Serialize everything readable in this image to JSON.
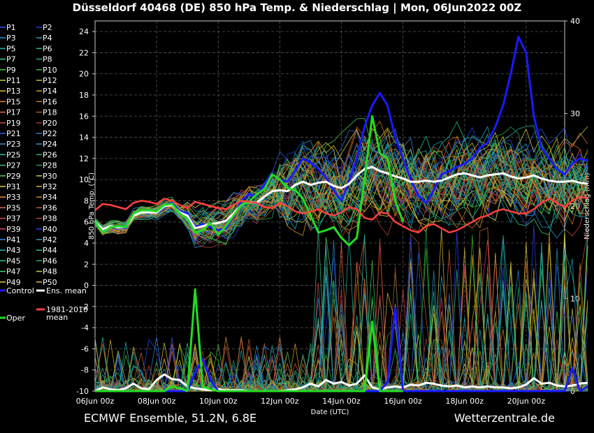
{
  "header": {
    "title": "Düsseldorf 40468 (DE)  850 hPa Temp. & Niederschlag | Mon, 06Jun2022 00Z"
  },
  "footer": {
    "left": "ECMWF Ensemble, 51.2N, 6.8E",
    "right": "Wetterzentrale.de"
  },
  "colors": {
    "background": "#000000",
    "grid": "#555555",
    "control": "#1a1aff",
    "ens_mean": "#ffffff",
    "oper": "#22dd22",
    "climate_mean": "#ff4040"
  },
  "legend": {
    "members": [
      "P1",
      "P2",
      "P3",
      "P4",
      "P5",
      "P6",
      "P7",
      "P8",
      "P9",
      "P10",
      "P11",
      "P12",
      "P13",
      "P14",
      "P15",
      "P16",
      "P17",
      "P18",
      "P19",
      "P20",
      "P21",
      "P22",
      "P23",
      "P24",
      "P25",
      "P26",
      "P27",
      "P28",
      "P29",
      "P30",
      "P31",
      "P32",
      "P33",
      "P34",
      "P35",
      "P36",
      "P37",
      "P38",
      "P39",
      "P40",
      "P41",
      "P42",
      "P43",
      "P44",
      "P45",
      "P46",
      "P47",
      "P48",
      "P49",
      "P50"
    ],
    "member_colors": [
      "#2255ff",
      "#2244ee",
      "#1f9bd8",
      "#3399cc",
      "#22b0b0",
      "#20c0a0",
      "#30d080",
      "#20b060",
      "#40d040",
      "#30c030",
      "#c0d040",
      "#d0c030",
      "#e0c020",
      "#d0a020",
      "#e08a30",
      "#d07a20",
      "#e06a30",
      "#c05a20",
      "#d04a40",
      "#b03030",
      "#3060e0",
      "#2a7ad0",
      "#2a90d0",
      "#20a0c0",
      "#20c0b0",
      "#20b090",
      "#30c070",
      "#20a050",
      "#50d050",
      "#d0d040",
      "#e0d030",
      "#e0b020",
      "#e09a30",
      "#d08020",
      "#e07040",
      "#c06030",
      "#e05050",
      "#c04040",
      "#e04060",
      "#3040ff",
      "#2a8ce0",
      "#2aa0d0",
      "#20b8c0",
      "#20c8a0",
      "#30d090",
      "#20b070",
      "#40d060",
      "#c8d040",
      "#e0c840",
      "#e0c040"
    ],
    "control_label": "Control",
    "ens_mean_label": "Ens. mean",
    "climate_label_1": "1981-2010",
    "climate_label_2": "mean",
    "oper_label": "Oper"
  },
  "chart_data": {
    "type": "line",
    "ylabel": "850 hPa Temp. (°C)",
    "y2label": "Niederschlag (mm)",
    "xlabel": "Date (UTC)",
    "ylim": [
      -10,
      25
    ],
    "y2lim": [
      0,
      40
    ],
    "xlim": [
      "2022-06-06 00:00",
      "2022-06-21 06:00"
    ],
    "yticks": [
      "24",
      "22",
      "20",
      "18",
      "16",
      "14",
      "12",
      "10",
      "8",
      "6",
      "4",
      "2",
      "0",
      "-2",
      "-4",
      "-6",
      "-8",
      "-10"
    ],
    "y2ticks": [
      "40",
      "30",
      "20",
      "10",
      "0"
    ],
    "xticks": [
      "06Jun 00z",
      "08Jun 00z",
      "10Jun 00z",
      "12Jun 00z",
      "14Jun 00z",
      "16Jun 00z",
      "18Jun 00z",
      "20Jun 00z"
    ],
    "grid": true,
    "legend_position": "left outside",
    "time_step_hours": 6,
    "series": [
      {
        "name": "Control",
        "kind": "temperature",
        "values": [
          6,
          5,
          5.6,
          5.5,
          5.4,
          6.8,
          7,
          7,
          7,
          7.6,
          7.8,
          7,
          6.8,
          5.5,
          5.8,
          5.5,
          5.2,
          5.4,
          6.5,
          8,
          8.6,
          8.5,
          9.5,
          10.5,
          10,
          9.8,
          10.8,
          12,
          11.6,
          11,
          10.2,
          9,
          8,
          9.8,
          12,
          15,
          17,
          18.2,
          17,
          14,
          12,
          10,
          8.5,
          7.8,
          9,
          10.5,
          10.8,
          11.2,
          11.5,
          12,
          13,
          13.5,
          15,
          17,
          20,
          23.5,
          22,
          16,
          13,
          12,
          11,
          10.5,
          11.5,
          12,
          11.8
        ]
      },
      {
        "name": "Ens. mean",
        "kind": "temperature",
        "values": [
          6,
          5.3,
          5.6,
          5.5,
          5.5,
          6.6,
          6.9,
          6.9,
          6.9,
          7.5,
          7.6,
          6.9,
          6.6,
          5.4,
          5.6,
          5.8,
          5.9,
          6.1,
          6.8,
          7.6,
          7.9,
          7.8,
          8.4,
          8.9,
          9,
          8.9,
          9.5,
          9.8,
          9.5,
          9.7,
          9.8,
          9.4,
          9.2,
          9.6,
          10.4,
          11,
          11.2,
          10.8,
          10.6,
          10.3,
          10.1,
          9.8,
          9.8,
          9.9,
          9.8,
          9.9,
          10.2,
          10.5,
          10.6,
          10.4,
          10.2,
          10.4,
          10.5,
          10.6,
          10.3,
          10.1,
          10.2,
          10.4,
          10.1,
          9.9,
          9.8,
          9.8,
          9.9,
          9.7,
          9.6
        ]
      },
      {
        "name": "Oper",
        "kind": "temperature",
        "values": [
          6,
          5,
          5.5,
          5.6,
          5.5,
          6.8,
          7.1,
          7.1,
          7,
          7.6,
          7.7,
          6.8,
          6.3,
          5,
          5.2,
          5.9,
          4.8,
          5.6,
          6.6,
          7.6,
          7.9,
          8.6,
          9.1,
          10.5,
          10,
          9.2,
          9,
          8.2,
          6.6,
          5,
          5.2,
          5.5,
          4.5,
          3.8,
          4.5,
          10,
          16,
          12.5,
          12,
          8,
          6
        ]
      },
      {
        "name": "1981-2010 mean",
        "kind": "temperature",
        "values": [
          7.1,
          7.7,
          7.6,
          7.4,
          7.2,
          7.8,
          8,
          7.9,
          7.7,
          8.2,
          8,
          7.6,
          7.3,
          7.9,
          7.7,
          7.5,
          7.3,
          7.2,
          7.6,
          8,
          7.9,
          7.8,
          7.4,
          7.3,
          7.8,
          7.5,
          7,
          6.8,
          7,
          7.2,
          6.8,
          6.6,
          6.9,
          7.4,
          7.2,
          6.4,
          6.2,
          6.9,
          6.8,
          6,
          5.6,
          5.2,
          5,
          5.6,
          5.8,
          5.4,
          5,
          5.2,
          5.6,
          6,
          6.4,
          6.6,
          7,
          7.2,
          7,
          6.8,
          6.8,
          7.2,
          7.8,
          8.2,
          7.8,
          7.4,
          8,
          8.4,
          8.2
        ]
      },
      {
        "name": "Ens. mean",
        "kind": "precipitation",
        "values": [
          0,
          0.4,
          0.2,
          0.1,
          0.3,
          0.8,
          0.3,
          0.2,
          1.2,
          1.8,
          1.3,
          1.2,
          0.5,
          0.3,
          0.2,
          0.1,
          0.2,
          0.1,
          0.1,
          0.1,
          0,
          0,
          0,
          0,
          0,
          0.1,
          0.2,
          0.4,
          0.8,
          0.5,
          1.2,
          0.8,
          1.0,
          0.6,
          0.8,
          1.7,
          0.4,
          0.2,
          0.4,
          0.5,
          0.4,
          0.7,
          0.6,
          0.9,
          0.8,
          0.6,
          0.5,
          0.6,
          0.4,
          0.5,
          0.4,
          0.5,
          0.4,
          0.4,
          0.3,
          0.4,
          0.7,
          1.4,
          0.8,
          0.9,
          0.6,
          0.5,
          0.6,
          0.8,
          0.9
        ]
      },
      {
        "name": "Control",
        "kind": "precipitation",
        "values": [
          0,
          0,
          0,
          0,
          0,
          0,
          0,
          0,
          0,
          0,
          0,
          0,
          0,
          2,
          3.5,
          1.2,
          0,
          0,
          0,
          0,
          0,
          0,
          0,
          0,
          0,
          0,
          0,
          0,
          0,
          0,
          0,
          0,
          0,
          0,
          0,
          0,
          0,
          0,
          1,
          9,
          0,
          0,
          0,
          0,
          0,
          0,
          0,
          0,
          0,
          0,
          0,
          0,
          0,
          0,
          0,
          0,
          0,
          0,
          0,
          0,
          0,
          0,
          2.5,
          0,
          0.5
        ]
      },
      {
        "name": "Oper",
        "kind": "precipitation",
        "values": [
          0,
          0,
          0,
          0,
          0,
          0,
          0,
          0,
          0,
          0,
          0.5,
          0.3,
          0,
          11,
          0.5,
          0.2,
          0,
          0,
          0,
          0,
          0,
          0,
          0,
          0,
          0,
          0,
          0,
          0,
          0,
          0,
          0,
          0,
          0,
          0,
          0,
          0,
          7.5,
          0,
          0,
          0,
          0
        ]
      }
    ]
  }
}
